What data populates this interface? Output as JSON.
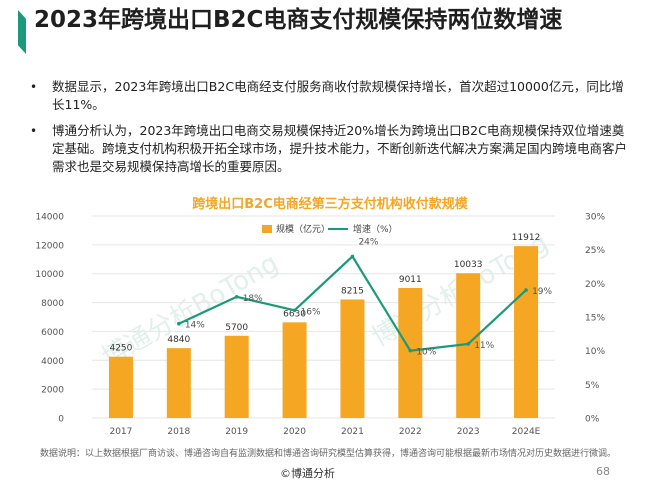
{
  "title": "2023年跨境出口B2C电商支付规模保持两位数增速",
  "bullets": [
    "数据显示，2023年跨境出口B2C电商经支付服务商收付款规模保持增长，首次超过10000亿元，同比增长11%。",
    "博通分析认为，2023年跨境出口电商交易规模保持近20%增长为跨境出口B2C电商规模保持双位增速奠定基础。跨境支付机构积极开拓全球市场，提升技术能力，不断创新迭代解决方案满足国内跨境电商客户需求也是交易规模保持高增长的重要原因。"
  ],
  "watermark_text": "博通分析BoTong",
  "footnote": "数据说明：以上数据根据厂商访谈、博通咨询自有监测数据和博通咨询研究模型估算获得，博通咨询可能根据最新市场情况对历史数据进行微调。",
  "brand": "©博通分析",
  "page_number": "68",
  "colors": {
    "bar": "#f5a623",
    "line": "#1a9a7a",
    "title": "#f5a623",
    "accent": "#1a9a7a"
  },
  "chart_data": {
    "type": "bar",
    "title": "跨境出口B2C电商经第三方支付机构收付款规模",
    "categories": [
      "2017",
      "2018",
      "2019",
      "2020",
      "2021",
      "2022",
      "2023",
      "2024E"
    ],
    "series": [
      {
        "name": "规模（亿元）",
        "type": "bar",
        "axis": "left",
        "values": [
          4250,
          4840,
          5700,
          6630,
          8215,
          9011,
          10033,
          11912
        ],
        "labels": [
          "4250",
          "4840",
          "5700",
          "6630",
          "8215",
          "9011",
          "10033",
          "11912"
        ]
      },
      {
        "name": "增速（%）",
        "type": "line",
        "axis": "right",
        "values": [
          null,
          14,
          18,
          16,
          24,
          10,
          11,
          19
        ],
        "labels": [
          "",
          "14%",
          "18%",
          "16%",
          "24%",
          "10%",
          "11%",
          "19%"
        ]
      }
    ],
    "y_left": {
      "min": 0,
      "max": 14000,
      "ticks": [
        "0",
        "2000",
        "4000",
        "6000",
        "8000",
        "10000",
        "12000",
        "14000"
      ]
    },
    "y_right": {
      "min": 0,
      "max": 30,
      "ticks": [
        "0%",
        "5%",
        "10%",
        "15%",
        "20%",
        "25%",
        "30%"
      ]
    },
    "grid": true,
    "legend": "top-center"
  }
}
